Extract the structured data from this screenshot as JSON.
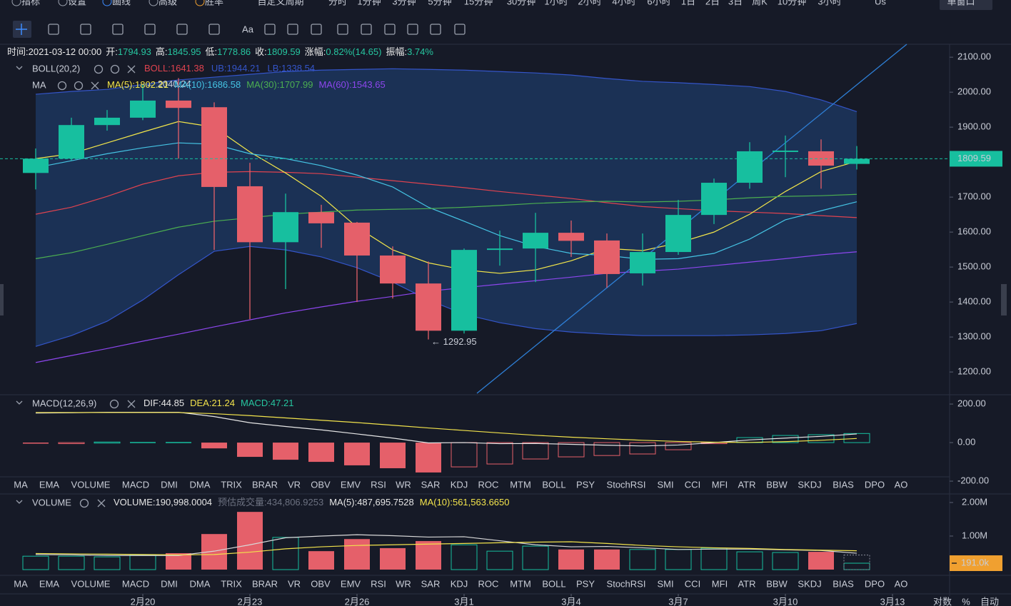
{
  "toolbar": {
    "items": [
      "指标",
      "设置",
      "画线",
      "高级",
      "胜率"
    ],
    "custom_period": "自定义周期",
    "periods": [
      "分时",
      "1分钟",
      "3分钟",
      "5分钟",
      "15分钟",
      "30分钟",
      "1小时",
      "2小时",
      "4小时",
      "6小时",
      "1日",
      "2日",
      "3日",
      "周K",
      "10分钟",
      "3小时"
    ],
    "timezone": "Us",
    "window": "单窗口",
    "text_tool": "Aa"
  },
  "info": {
    "time_label": "时间:",
    "time": "2021-03-12 00:00",
    "open_label": "开:",
    "high_label": "高:",
    "low_label": "低:",
    "close_label": "收:",
    "change_label": "涨幅:",
    "change": "0.82%(14.65)",
    "amplitude_label": "振幅:",
    "amplitude": "3.74%"
  },
  "main": {
    "type": "candlestick",
    "categories": [
      null,
      null,
      null,
      "2月20",
      null,
      null,
      "2月23",
      null,
      null,
      "2月26",
      null,
      null,
      "3月1",
      null,
      null,
      "3月4",
      null,
      null,
      "3月7",
      null,
      null,
      "3月10",
      null,
      null,
      "3月13"
    ],
    "open": [
      1769,
      1810,
      1906,
      1927,
      1976,
      1957,
      1731,
      1571,
      1657,
      1627,
      1533,
      1453,
      1318,
      1549,
      1553,
      1598,
      1576,
      1482,
      1543,
      1649,
      1741,
      1829,
      1831,
      1794.93,
      null
    ],
    "high": [
      1839,
      1927,
      1949,
      2022,
      2040.24,
      1971,
      1798,
      1710,
      1678,
      1629,
      1559,
      1516,
      1553,
      1604,
      1655,
      1633,
      1596,
      1596,
      1692,
      1753,
      1857,
      1876,
      1865,
      1845.95,
      null
    ],
    "low": [
      1722,
      1804,
      1890,
      1920,
      1810,
      1549,
      1351,
      1437,
      1555,
      1400,
      1410,
      1292.95,
      1310,
      1504,
      1457,
      1529,
      1441,
      1447,
      1535,
      1623,
      1724,
      1757,
      1724,
      1778.86,
      null
    ],
    "close": [
      1810,
      1906,
      1927,
      1976,
      1955,
      1729,
      1571,
      1657,
      1625,
      1533,
      1453,
      1318,
      1549,
      1553,
      1598,
      1575,
      1480,
      1543,
      1649,
      1741,
      1831,
      1833,
      1790,
      1809.59,
      null
    ],
    "up_color": "#17bf9f",
    "down_color": "#e5606a",
    "high_annotation": "← 2040.24",
    "low_annotation": "← 1292.95",
    "ylim": [
      1137,
      2137
    ],
    "yticks": [
      {
        "value": 1200,
        "label": "1200.00"
      },
      {
        "value": 1300,
        "label": "1300.00"
      },
      {
        "value": 1400,
        "label": "1400.00"
      },
      {
        "value": 1500,
        "label": "1500.00"
      },
      {
        "value": 1600,
        "label": "1600.00"
      },
      {
        "value": 1700,
        "label": "1700.00"
      },
      {
        "value": 1800,
        "label": "1800.00"
      },
      {
        "value": 1900,
        "label": "1900.00"
      },
      {
        "value": 2000,
        "label": "2000.00"
      },
      {
        "value": 2100,
        "label": "2100.00"
      }
    ],
    "boll": {
      "title": "BOLL(20,2)",
      "band_color": "#1d3a66",
      "series": [
        {
          "name": "BOLL:",
          "color": "#e0434f",
          "values": [
            1651,
            1671,
            1702,
            1737,
            1761,
            1771,
            1773,
            1771,
            1767,
            1757,
            1747,
            1737,
            1727,
            1716,
            1706,
            1696,
            1684,
            1673,
            1667,
            1661,
            1657,
            1653,
            1647,
            1641.38,
            null
          ]
        },
        {
          "name": "UB:",
          "color": "#3455c9",
          "values": [
            1994,
            2002,
            2008,
            2022,
            2035,
            2043,
            2051,
            2059,
            2063,
            2065,
            2067,
            2065,
            2063,
            2059,
            2055,
            2049,
            2039,
            2031,
            2027,
            2022,
            2016,
            2002,
            1978,
            1944.21,
            null
          ]
        },
        {
          "name": "LB:",
          "color": "#3455c9",
          "values": [
            1273,
            1304,
            1345,
            1406,
            1478,
            1545,
            1559,
            1549,
            1529,
            1498,
            1457,
            1406,
            1365,
            1341,
            1324,
            1314,
            1308,
            1304,
            1304,
            1304,
            1306,
            1310,
            1318,
            1338.54,
            null
          ]
        }
      ]
    },
    "ma": {
      "title": "MA",
      "series": [
        {
          "name": "MA(5):",
          "color": "#f3e64a",
          "values": [
            1810,
            1824,
            1855,
            1886,
            1916,
            1900,
            1829,
            1769,
            1702,
            1614,
            1549,
            1512,
            1492,
            1482,
            1492,
            1518,
            1553,
            1547,
            1569,
            1600,
            1651,
            1716,
            1773,
            1802.21,
            null
          ]
        },
        {
          "name": "MA(10):",
          "color": "#45c3e3",
          "values": [
            1784,
            1804,
            1824,
            1841,
            1855,
            1851,
            1824,
            1810,
            1790,
            1763,
            1729,
            1671,
            1631,
            1590,
            1559,
            1539,
            1533,
            1522,
            1524,
            1539,
            1580,
            1635,
            1661,
            1686.58,
            null
          ]
        },
        {
          "name": "MA(30):",
          "color": "#4caf50",
          "values": [
            1524,
            1541,
            1565,
            1590,
            1614,
            1631,
            1641,
            1651,
            1657,
            1663,
            1665,
            1667,
            1671,
            1676,
            1682,
            1686,
            1688,
            1686,
            1688,
            1692,
            1698,
            1702,
            1704,
            1707.99,
            null
          ]
        },
        {
          "name": "MA(60):",
          "color": "#8d46ee",
          "values": [
            1227,
            1247,
            1267,
            1288,
            1308,
            1329,
            1349,
            1369,
            1386,
            1402,
            1416,
            1431,
            1441,
            1451,
            1461,
            1471,
            1482,
            1488,
            1494,
            1504,
            1514,
            1524,
            1535,
            1543.65,
            null
          ]
        }
      ]
    }
  },
  "macd": {
    "type": "histogram-lines",
    "title": "MACD(12,26,9)",
    "series": [
      {
        "name": "DIF:",
        "color": "#e6e6e6",
        "values": [
          153.5,
          155,
          157.5,
          157.5,
          157.5,
          135,
          103,
          83.5,
          66,
          45,
          23.5,
          -1.5,
          0,
          -5.5,
          -4.5,
          -9,
          -13.5,
          -17.5,
          -12.5,
          0,
          14,
          23.5,
          32.5,
          44.85,
          null
        ]
      },
      {
        "name": "DEA:",
        "color": "#f2e34c",
        "values": [
          156,
          156,
          156,
          156,
          156,
          150,
          140,
          128,
          116,
          104,
          90,
          76,
          63,
          50,
          38,
          28,
          20,
          12,
          6,
          2,
          1,
          5,
          12,
          21.24,
          null
        ]
      }
    ],
    "histogram": {
      "name": "MACD:",
      "color": "#26c6a0",
      "values": [
        -5,
        -2,
        3,
        3,
        3,
        -30,
        -74,
        -89,
        -100,
        -118,
        -133,
        -155,
        -126,
        -111,
        -85,
        -74,
        -67,
        -59,
        -37,
        -4,
        26,
        37,
        41,
        47.21,
        null
      ]
    },
    "ylim": [
      -259,
      241
    ],
    "yticks": [
      {
        "value": -200,
        "label": "-200.00"
      },
      {
        "value": 0,
        "label": "0.00"
      },
      {
        "value": 200,
        "label": "200.00"
      }
    ]
  },
  "volume": {
    "type": "bar",
    "title": "VOLUME",
    "values": [
      400000,
      400000,
      380000,
      430000,
      490000,
      1060000,
      1720000,
      960000,
      550000,
      910000,
      640000,
      850000,
      740000,
      550000,
      700000,
      600000,
      600000,
      600000,
      600000,
      640000,
      530000,
      510000,
      530000,
      190998.0004,
      null
    ],
    "value_labels": [
      null,
      null,
      null,
      null,
      null,
      null,
      null,
      null,
      null,
      null,
      null,
      null,
      null,
      null,
      null,
      null,
      null,
      null,
      null,
      null,
      null,
      null,
      null,
      "191.0k",
      null
    ],
    "estimate": 434806.9253,
    "legend": [
      {
        "label": "VOLUME:",
        "value": "190,998.0004",
        "color": "#e6e6e6"
      },
      {
        "label": "预估成交量:",
        "value": "434,806.9253",
        "color": "#6c7180"
      },
      {
        "label": "MA(5):",
        "value": "487,695.7528",
        "color": "#e6e6e6"
      },
      {
        "label": "MA(10):",
        "value": "561,563.6650",
        "color": "#f2e34c"
      }
    ],
    "series": [
      {
        "name": "MA(5)",
        "color": "#d8d8d8",
        "values": [
          450000,
          440000,
          420000,
          420000,
          420000,
          550000,
          740000,
          950000,
          1000000,
          1040000,
          1010000,
          970000,
          980000,
          860000,
          740000,
          680000,
          690000,
          650000,
          600000,
          610000,
          610000,
          590000,
          570000,
          487695.7528,
          null
        ]
      },
      {
        "name": "MA(10)",
        "color": "#f2e34c",
        "values": [
          480000,
          470000,
          460000,
          450000,
          440000,
          450000,
          520000,
          620000,
          680000,
          720000,
          740000,
          760000,
          780000,
          800000,
          820000,
          830000,
          780000,
          720000,
          680000,
          650000,
          630000,
          600000,
          580000,
          561563.665,
          null
        ]
      }
    ],
    "ylim": [
      -170000,
      2234000
    ],
    "yticks": [
      {
        "value": 1000000,
        "label": "1.00M"
      },
      {
        "value": 2000000,
        "label": "2.00M"
      }
    ]
  },
  "indicator_tabs": [
    "MA",
    "EMA",
    "VOLUME",
    "MACD",
    "DMI",
    "DMA",
    "TRIX",
    "BRAR",
    "VR",
    "OBV",
    "EMV",
    "RSI",
    "WR",
    "SAR",
    "KDJ",
    "ROC",
    "MTM",
    "BOLL",
    "PSY",
    "StochRSI",
    "SMI",
    "CCI",
    "MFI",
    "ATR",
    "BBW",
    "SKDJ",
    "BIAS",
    "DPO",
    "AO"
  ],
  "scale_options": [
    "对数",
    "%",
    "自动"
  ]
}
